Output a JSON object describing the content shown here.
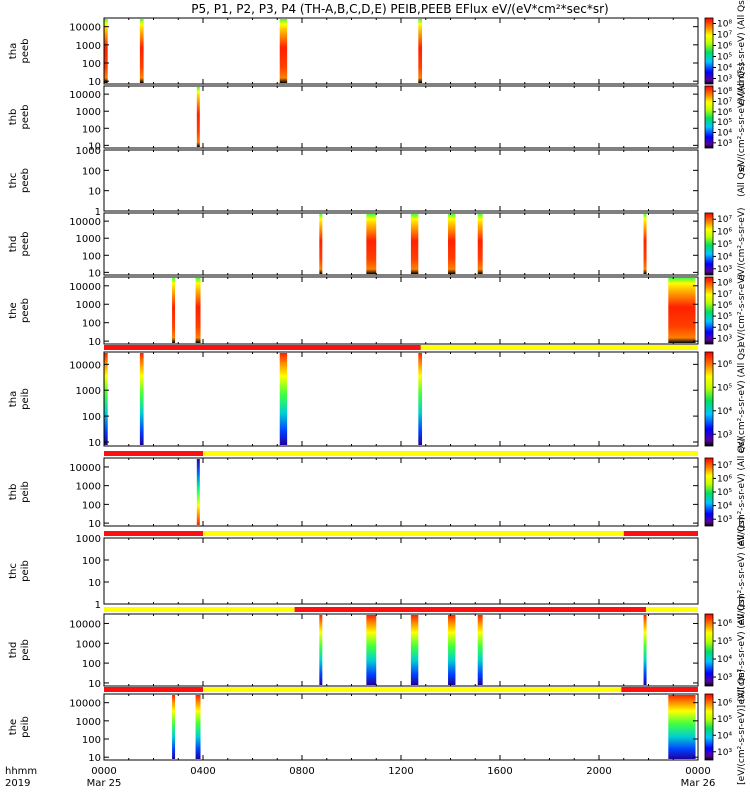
{
  "title": "P5, P1, P2, P3, P4 (TH-A,B,C,D,E) PEIB,PEEB EFlux eV/(eV*cm²*sec*sr)",
  "x_axis": {
    "row_label_1": "hhmm",
    "row_label_2": "2019",
    "ticks": [
      {
        "hour": 0,
        "label": "0000",
        "date": "Mar 25"
      },
      {
        "hour": 4,
        "label": "0400",
        "date": ""
      },
      {
        "hour": 8,
        "label": "0800",
        "date": ""
      },
      {
        "hour": 12,
        "label": "1200",
        "date": ""
      },
      {
        "hour": 16,
        "label": "1600",
        "date": ""
      },
      {
        "hour": 20,
        "label": "2000",
        "date": ""
      },
      {
        "hour": 24,
        "label": "0000",
        "date": "Mar 26"
      }
    ]
  },
  "colorbar_labels": [
    "eV/(cm²-s-sr-eV) (All Qs)",
    "eV/(cm²-s-sr-eV) (All Qs)",
    "(All Qs)",
    "eV/(cm²-s-sr-eV)",
    "eV/(cm²-s-sr-eV)",
    "eV/(cm²-s-sr-eV) (All Qs)",
    "eV/(cm²-s-sr-eV) (All Qs)",
    "eV/(cm²-s-sr-eV) (All Qs)",
    "eV/(cm²-s-sr-eV) (All Qs)",
    "[eV/(cm²-s-sr-eV)] (All Qs)"
  ],
  "chart_data": {
    "type": "heatmap",
    "x_unit": "hours since 2019-03-25 00:00 UT",
    "panels": [
      {
        "id": "tha-peeb",
        "probe": "tha",
        "product": "peeb",
        "yticks": [
          "10",
          "100",
          "1000",
          "10000"
        ],
        "ylim": [
          7,
          30000
        ],
        "colorbar": [
          "10³",
          "10⁴",
          "10⁵",
          "10⁶",
          "10⁷",
          "10⁸"
        ],
        "colorbar_exp": [
          3,
          8
        ],
        "bursts": [
          [
            0.0,
            0.15
          ],
          [
            1.45,
            1.6
          ],
          [
            7.1,
            7.4
          ],
          [
            12.7,
            12.85
          ]
        ],
        "status_bar": []
      },
      {
        "id": "thb-peeb",
        "probe": "thb",
        "product": "peeb",
        "yticks": [
          "10",
          "100",
          "1000",
          "10000"
        ],
        "ylim": [
          7,
          30000
        ],
        "colorbar": [
          "10³",
          "10⁴",
          "10⁵",
          "10⁶",
          "10⁷",
          "10⁸"
        ],
        "colorbar_exp": [
          3,
          8
        ],
        "bursts": [
          [
            3.75,
            3.82
          ]
        ],
        "status_bar": []
      },
      {
        "id": "thc-peeb",
        "probe": "thc",
        "product": "peeb",
        "yticks": [
          "1",
          "10",
          "100",
          "1000"
        ],
        "ylim": [
          1,
          1000
        ],
        "colorbar": [],
        "colorbar_exp": [],
        "bursts": [],
        "status_bar": []
      },
      {
        "id": "thd-peeb",
        "probe": "thd",
        "product": "peeb",
        "yticks": [
          "10",
          "100",
          "1000",
          "10000"
        ],
        "ylim": [
          7,
          30000
        ],
        "colorbar": [
          "10³",
          "10⁴",
          "10⁵",
          "10⁶",
          "10⁷"
        ],
        "colorbar_exp": [
          3,
          7
        ],
        "bursts": [
          [
            8.7,
            8.8
          ],
          [
            10.6,
            11.0
          ],
          [
            12.4,
            12.7
          ],
          [
            13.9,
            14.2
          ],
          [
            15.1,
            15.3
          ],
          [
            21.8,
            21.9
          ]
        ],
        "status_bar": []
      },
      {
        "id": "the-peeb",
        "probe": "the",
        "product": "peeb",
        "yticks": [
          "10",
          "100",
          "1000",
          "10000"
        ],
        "ylim": [
          7,
          30000
        ],
        "colorbar": [
          "10³",
          "10⁴",
          "10⁵",
          "10⁶",
          "10⁷",
          "10⁸"
        ],
        "colorbar_exp": [
          3,
          8
        ],
        "bursts": [
          [
            2.75,
            2.85
          ],
          [
            3.7,
            3.9
          ],
          [
            22.8,
            23.9
          ]
        ],
        "status_bar": []
      },
      {
        "id": "tha-peib",
        "probe": "tha",
        "product": "peib",
        "yticks": [
          "10",
          "100",
          "1000",
          "10000"
        ],
        "ylim": [
          7,
          30000
        ],
        "colorbar": [
          "10³",
          "10⁴",
          "10⁵",
          "10⁶"
        ],
        "colorbar_exp": [
          3,
          6
        ],
        "bursts": [
          [
            0.0,
            0.15
          ],
          [
            1.45,
            1.6
          ],
          [
            7.1,
            7.4
          ],
          [
            12.7,
            12.85
          ]
        ],
        "status_bar": [
          {
            "from": 0,
            "to": 12.8,
            "color": "red"
          },
          {
            "from": 12.8,
            "to": 24,
            "color": "yellow"
          }
        ]
      },
      {
        "id": "thb-peib",
        "probe": "thb",
        "product": "peib",
        "yticks": [
          "10",
          "100",
          "1000",
          "10000"
        ],
        "ylim": [
          7,
          30000
        ],
        "colorbar": [
          "10³",
          "10⁴",
          "10⁵",
          "10⁶",
          "10⁷"
        ],
        "colorbar_exp": [
          3,
          7
        ],
        "bursts": [
          [
            3.75,
            3.82
          ]
        ],
        "status_bar": [
          {
            "from": 0,
            "to": 4.0,
            "color": "red"
          },
          {
            "from": 4.0,
            "to": 24,
            "color": "yellow"
          }
        ]
      },
      {
        "id": "thc-peib",
        "probe": "thc",
        "product": "peib",
        "yticks": [
          "1",
          "10",
          "100",
          "1000"
        ],
        "ylim": [
          1,
          1000
        ],
        "colorbar": [],
        "colorbar_exp": [],
        "bursts": [],
        "status_bar": [
          {
            "from": 0,
            "to": 4.0,
            "color": "red"
          },
          {
            "from": 4.0,
            "to": 21.0,
            "color": "yellow"
          },
          {
            "from": 21.0,
            "to": 24,
            "color": "red"
          }
        ]
      },
      {
        "id": "thd-peib",
        "probe": "thd",
        "product": "peib",
        "yticks": [
          "10",
          "100",
          "1000",
          "10000"
        ],
        "ylim": [
          7,
          30000
        ],
        "colorbar": [
          "10³",
          "10⁴",
          "10⁵",
          "10⁶"
        ],
        "colorbar_exp": [
          3,
          6
        ],
        "bursts": [
          [
            8.7,
            8.8
          ],
          [
            10.6,
            11.0
          ],
          [
            12.4,
            12.7
          ],
          [
            13.9,
            14.2
          ],
          [
            15.1,
            15.3
          ],
          [
            21.8,
            21.9
          ]
        ],
        "status_bar": [
          {
            "from": 0,
            "to": 7.7,
            "color": "yellow"
          },
          {
            "from": 7.7,
            "to": 21.9,
            "color": "red"
          },
          {
            "from": 21.9,
            "to": 24,
            "color": "yellow"
          }
        ]
      },
      {
        "id": "the-peib",
        "probe": "the",
        "product": "peib",
        "yticks": [
          "10",
          "100",
          "1000",
          "10000"
        ],
        "ylim": [
          7,
          30000
        ],
        "colorbar": [
          "10³",
          "10⁴",
          "10⁵",
          "10⁶"
        ],
        "colorbar_exp": [
          3,
          6
        ],
        "bursts": [
          [
            2.75,
            2.85
          ],
          [
            3.7,
            3.9
          ],
          [
            22.8,
            23.9
          ]
        ],
        "status_bar": [
          {
            "from": 0,
            "to": 4.0,
            "color": "red"
          },
          {
            "from": 4.0,
            "to": 20.9,
            "color": "yellow"
          },
          {
            "from": 20.9,
            "to": 24,
            "color": "red"
          }
        ]
      }
    ]
  }
}
